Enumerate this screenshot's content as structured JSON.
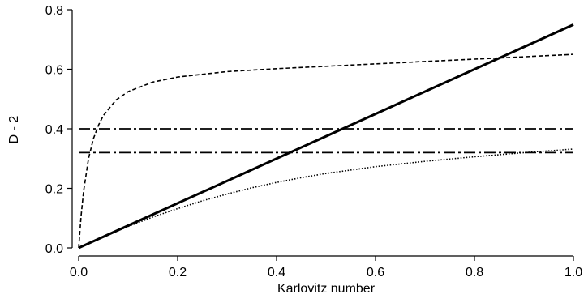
{
  "chart_data": {
    "type": "line",
    "xlabel": "Karlovitz number",
    "ylabel": "D - 2",
    "xlim": [
      0.0,
      1.0
    ],
    "ylim": [
      0.0,
      0.8
    ],
    "xticks": [
      "0.0",
      "0.2",
      "0.4",
      "0.6",
      "0.8",
      "1.0"
    ],
    "yticks": [
      "0.0",
      "0.2",
      "0.4",
      "0.6",
      "0.8"
    ],
    "grid": false,
    "legend": "none",
    "series": [
      {
        "style": "solid",
        "color": "#000000",
        "x": [
          0.0,
          0.2,
          0.4,
          0.6,
          0.8,
          1.0
        ],
        "y": [
          0.0,
          0.15,
          0.3,
          0.45,
          0.6,
          0.75
        ]
      },
      {
        "style": "dashed",
        "color": "#000000",
        "x": [
          0.0,
          0.005,
          0.01,
          0.02,
          0.03,
          0.04,
          0.05,
          0.075,
          0.1,
          0.15,
          0.2,
          0.3,
          0.4,
          0.5,
          0.6,
          0.7,
          0.8,
          0.9,
          1.0
        ],
        "y": [
          0.0,
          0.108,
          0.191,
          0.301,
          0.368,
          0.412,
          0.445,
          0.496,
          0.525,
          0.557,
          0.574,
          0.592,
          0.602,
          0.61,
          0.618,
          0.626,
          0.634,
          0.642,
          0.65
        ]
      },
      {
        "style": "dotted",
        "color": "#000000",
        "x": [
          0.0,
          0.05,
          0.1,
          0.15,
          0.2,
          0.25,
          0.3,
          0.35,
          0.4,
          0.45,
          0.5,
          0.6,
          0.7,
          0.8,
          0.9,
          1.0
        ],
        "y": [
          0.0,
          0.037,
          0.072,
          0.104,
          0.132,
          0.158,
          0.181,
          0.202,
          0.22,
          0.236,
          0.25,
          0.273,
          0.291,
          0.306,
          0.32,
          0.332
        ]
      },
      {
        "style": "dashdot",
        "color": "#000000",
        "x": [
          0.0,
          1.0
        ],
        "y": [
          0.4,
          0.4
        ]
      },
      {
        "style": "dashdot",
        "color": "#000000",
        "x": [
          0.0,
          1.0
        ],
        "y": [
          0.32,
          0.32
        ]
      }
    ]
  }
}
